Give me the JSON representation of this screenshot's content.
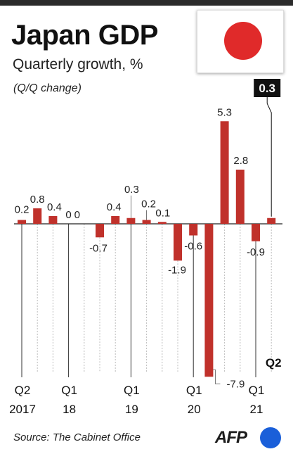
{
  "title": "Japan GDP",
  "subtitle": "Quarterly growth, %",
  "note": "(Q/Q change)",
  "source": "Source: The Cabinet Office",
  "logo": "AFP",
  "colors": {
    "bar": "#c0312b",
    "accent": "#111111",
    "flag_red": "#e02a2a",
    "logo_blue": "#1a5fd9"
  },
  "chart_data": {
    "type": "bar",
    "title": "Japan GDP",
    "subtitle": "Quarterly growth, %",
    "ylabel": "",
    "xlabel": "",
    "ylim": [
      -8,
      6
    ],
    "grid": false,
    "categories": [
      "Q2 2017",
      "Q3 2017",
      "Q4 2017",
      "Q1 2018",
      "Q2 2018",
      "Q3 2018",
      "Q4 2018",
      "Q1 2019",
      "Q2 2019",
      "Q3 2019",
      "Q4 2019",
      "Q1 2020",
      "Q2 2020",
      "Q3 2020",
      "Q4 2020",
      "Q1 2021",
      "Q2 2021"
    ],
    "values": [
      0.2,
      0.8,
      0.4,
      0,
      0,
      -0.7,
      0.4,
      0.3,
      0.2,
      0.1,
      -1.9,
      -0.6,
      -7.9,
      5.3,
      2.8,
      -0.9,
      0.3
    ],
    "value_labels": [
      "0.2",
      "0.8",
      "0.4",
      "0",
      "0",
      "-0.7",
      "0.4",
      "0.3",
      "0.2",
      "0.1",
      "-1.9",
      "-0.6",
      "-7.9",
      "5.3",
      "2.8",
      "-0.9",
      "0.3"
    ],
    "tick_labels": [
      {
        "index": 0,
        "line1": "Q2",
        "line2": "2017"
      },
      {
        "index": 3,
        "line1": "Q1",
        "line2": "18"
      },
      {
        "index": 7,
        "line1": "Q1",
        "line2": "19"
      },
      {
        "index": 11,
        "line1": "Q1",
        "line2": "20"
      },
      {
        "index": 15,
        "line1": "Q1",
        "line2": "21"
      }
    ],
    "highlight": {
      "index": 16,
      "label": "0.3",
      "period": "Q2"
    }
  }
}
